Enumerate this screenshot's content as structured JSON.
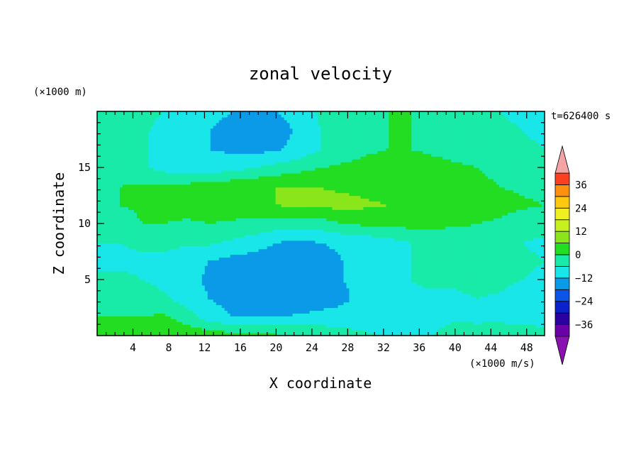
{
  "chart_data": {
    "type": "heatmap",
    "title": "zonal velocity",
    "xlabel": "X coordinate",
    "ylabel": "Z coordinate",
    "x_unit": "(×1000 m/s)",
    "y_unit": "(×1000 m)",
    "time_label": "t=626400 s",
    "xlim": [
      0,
      50
    ],
    "ylim": [
      0,
      20
    ],
    "x_ticks": [
      4,
      8,
      12,
      16,
      20,
      24,
      28,
      32,
      36,
      40,
      44,
      48
    ],
    "y_ticks": [
      5,
      10,
      15
    ],
    "colorbar": {
      "levels": [
        -42,
        -36,
        -30,
        -24,
        -18,
        -12,
        -6,
        0,
        6,
        12,
        18,
        24,
        30,
        36,
        42
      ],
      "tick_values": [
        36,
        24,
        12,
        0,
        -12,
        -24,
        -36
      ],
      "tick_labels": [
        "36",
        "24",
        "12",
        "0",
        "−12",
        "−24",
        "−36"
      ],
      "colors": [
        "#6a00a8",
        "#2a00a0",
        "#0a22cc",
        "#0a55e8",
        "#0a9ae8",
        "#19e6e8",
        "#19eaa8",
        "#22dd22",
        "#8ae61a",
        "#c8f020",
        "#eef022",
        "#ffc810",
        "#ff9010",
        "#ff4020",
        "#ff0000"
      ],
      "under_color": "#8a12b0",
      "over_color": "#f4a4a4"
    },
    "field": [
      [
        1,
        2,
        3,
        5,
        5,
        4,
        3,
        2,
        1,
        0,
        -1,
        -3,
        -5,
        -7,
        -8,
        -6,
        -3,
        -2,
        -1,
        -1,
        -2
      ],
      [
        0,
        0,
        0,
        1,
        -3,
        -9,
        -12,
        -12,
        -12,
        -11,
        -10,
        -10,
        -9,
        -8,
        -8,
        -8,
        -7,
        -8,
        -8,
        -10,
        -10
      ],
      [
        -3,
        -2,
        -2,
        -5,
        -9,
        -12,
        -14,
        -17,
        -18,
        -17,
        -15,
        -13,
        -10,
        -8,
        -7,
        -7,
        -7,
        -6,
        -7,
        -10,
        -10
      ],
      [
        -5,
        -5,
        -6,
        -8,
        -10,
        -13,
        -15,
        -16,
        -15,
        -14,
        -13,
        -12,
        -10,
        -8,
        -6,
        -5,
        -5,
        -4,
        -4,
        -6,
        -7
      ],
      [
        -7,
        -7,
        -7,
        -8,
        -10,
        -12,
        -14,
        -15,
        -15,
        -15,
        -14,
        -12,
        -10,
        -8,
        -6,
        -5,
        -4,
        -3,
        -3,
        -5,
        -6
      ],
      [
        -6,
        -6,
        -5,
        -4,
        -5,
        -5,
        -7,
        -9,
        -12,
        -13,
        -12,
        -11,
        -10,
        -8,
        -6,
        -5,
        -5,
        -4,
        -4,
        -6,
        -7
      ],
      [
        -3,
        -3,
        0,
        0,
        -1,
        0,
        -1,
        -2,
        -3,
        -4,
        -3,
        0,
        1,
        1,
        2,
        2,
        1,
        0,
        -1,
        -3,
        -4
      ],
      [
        -1,
        0,
        1,
        2,
        3,
        3,
        4,
        5,
        6,
        7,
        7,
        8,
        7,
        6,
        5,
        4,
        4,
        3,
        2,
        1,
        0
      ],
      [
        -1,
        0,
        1,
        1,
        2,
        3,
        4,
        5,
        6,
        6,
        6,
        5,
        4,
        3,
        2,
        2,
        2,
        1,
        0,
        -1,
        -2
      ],
      [
        -1,
        -3,
        -5,
        -8,
        -10,
        -10,
        -8,
        -6,
        -4,
        -2,
        0,
        1,
        2,
        3,
        3,
        2,
        1,
        0,
        -1,
        -2,
        -3
      ],
      [
        -2,
        -3,
        -5,
        -8,
        -10,
        -12,
        -13,
        -14,
        -13,
        -10,
        -6,
        -3,
        -1,
        0,
        0,
        -1,
        -2,
        -3,
        -4,
        -5,
        -6
      ],
      [
        -2,
        -3,
        -5,
        -8,
        -10,
        -12,
        -14,
        -16,
        -15,
        -11,
        -6,
        -3,
        -1,
        0,
        0,
        -1,
        -2,
        -4,
        -5,
        -6,
        -7
      ],
      [
        -1,
        -2,
        -4,
        -6,
        -8,
        -10,
        -12,
        -13,
        -12,
        -9,
        -5,
        -3,
        -1,
        0,
        0,
        -1,
        -2,
        -4,
        -6,
        -7,
        -8
      ]
    ]
  }
}
